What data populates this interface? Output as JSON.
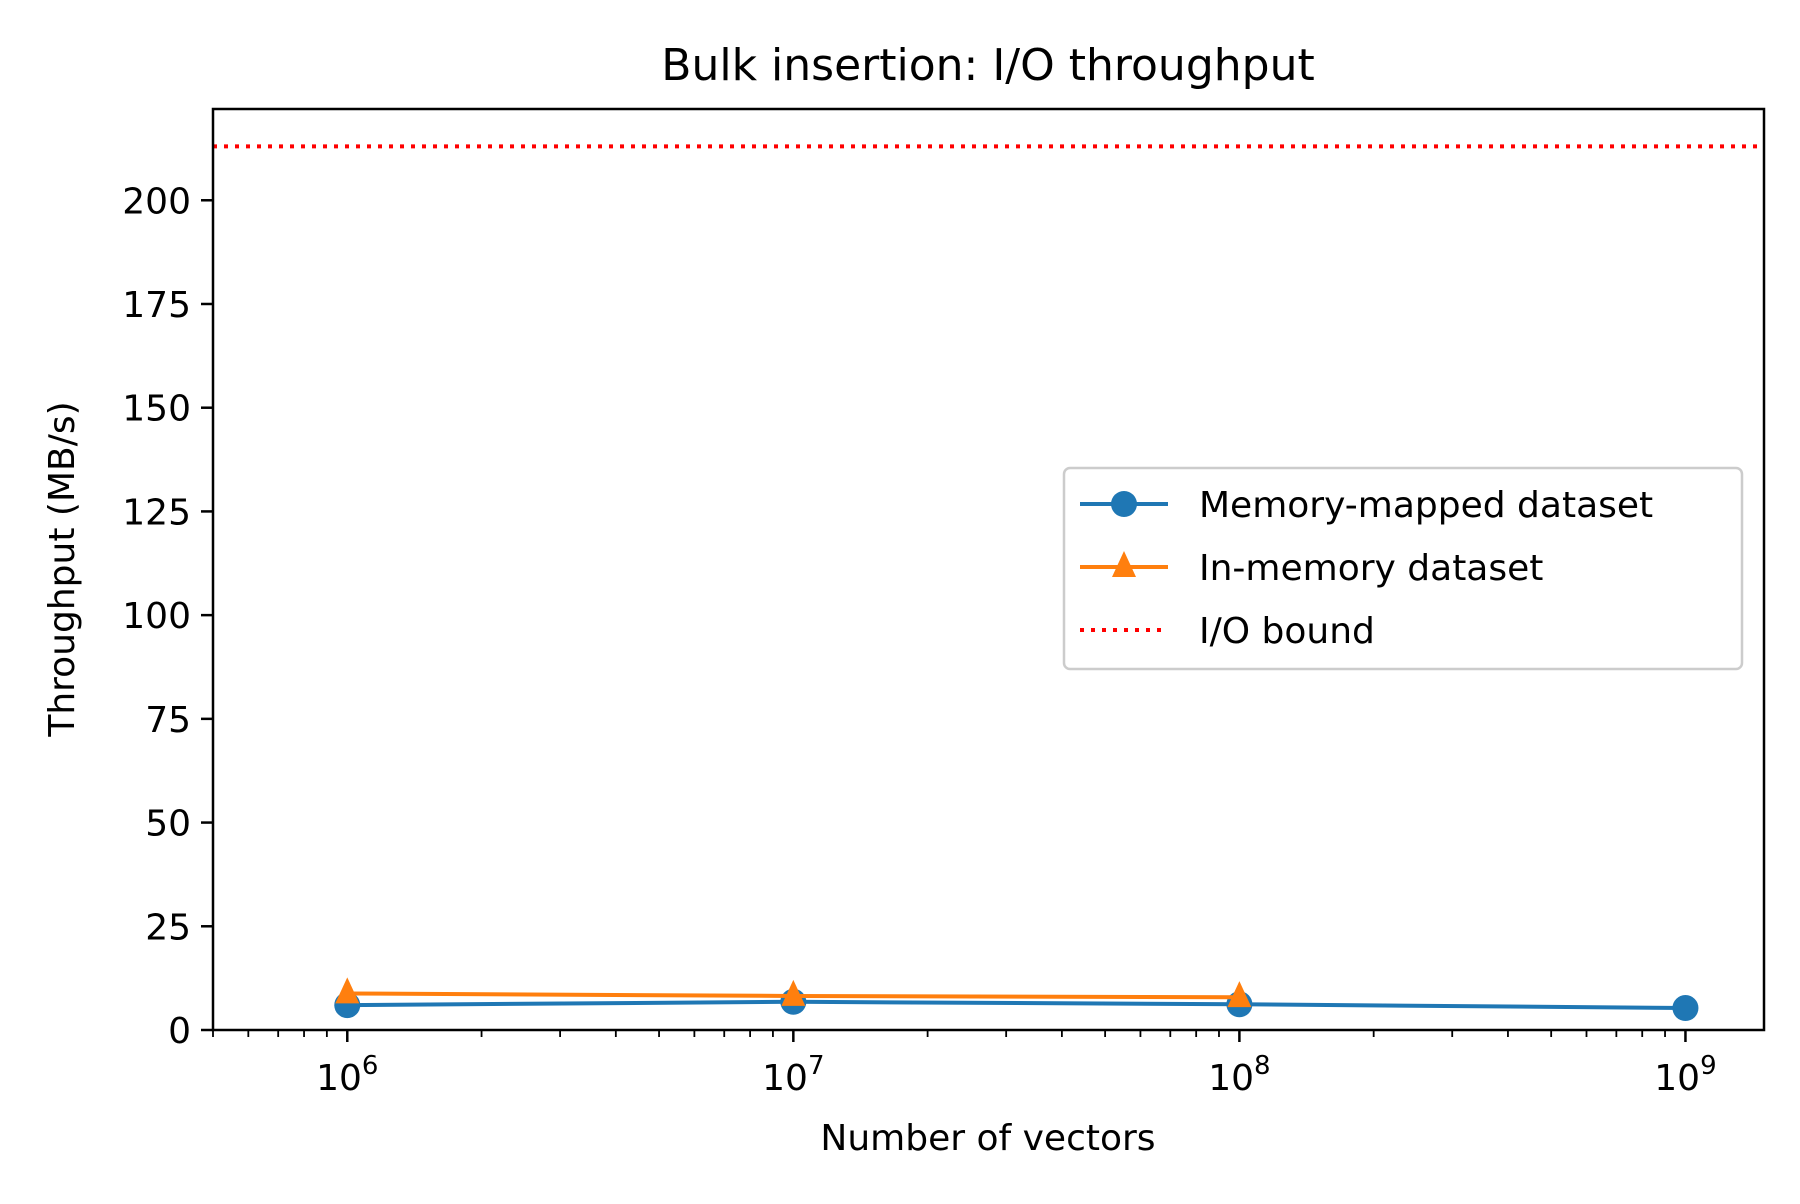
{
  "chart_data": {
    "type": "line",
    "title": "Bulk insertion: I/O throughput",
    "xlabel": "Number of vectors",
    "ylabel": "Throughput (MB/s)",
    "xscale": "log",
    "xlim": [
      500000,
      1500000000
    ],
    "ylim": [
      0,
      222
    ],
    "x_ticks": [
      {
        "value": 1000000,
        "base": "10",
        "exp": "6"
      },
      {
        "value": 10000000,
        "base": "10",
        "exp": "7"
      },
      {
        "value": 100000000,
        "base": "10",
        "exp": "8"
      },
      {
        "value": 1000000000,
        "base": "10",
        "exp": "9"
      }
    ],
    "y_ticks": [
      {
        "value": 0,
        "label": "0"
      },
      {
        "value": 25,
        "label": "25"
      },
      {
        "value": 50,
        "label": "50"
      },
      {
        "value": 75,
        "label": "75"
      },
      {
        "value": 100,
        "label": "100"
      },
      {
        "value": 125,
        "label": "125"
      },
      {
        "value": 150,
        "label": "150"
      },
      {
        "value": 175,
        "label": "175"
      },
      {
        "value": 200,
        "label": "200"
      }
    ],
    "grid": false,
    "legend_position": "center-right",
    "series": [
      {
        "name": "Memory-mapped dataset",
        "color": "#1f77b4",
        "marker": "circle",
        "line_style": "solid",
        "x": [
          1000000,
          10000000,
          100000000,
          1000000000
        ],
        "values": [
          6.0,
          6.8,
          6.2,
          5.3
        ]
      },
      {
        "name": "In-memory dataset",
        "color": "#ff7f0e",
        "marker": "triangle",
        "line_style": "solid",
        "x": [
          1000000,
          10000000,
          100000000
        ],
        "values": [
          8.8,
          8.2,
          7.9
        ]
      }
    ],
    "reference_lines": [
      {
        "name": "I/O bound",
        "color": "#ff0000",
        "line_style": "dotted",
        "y": 213
      }
    ]
  }
}
